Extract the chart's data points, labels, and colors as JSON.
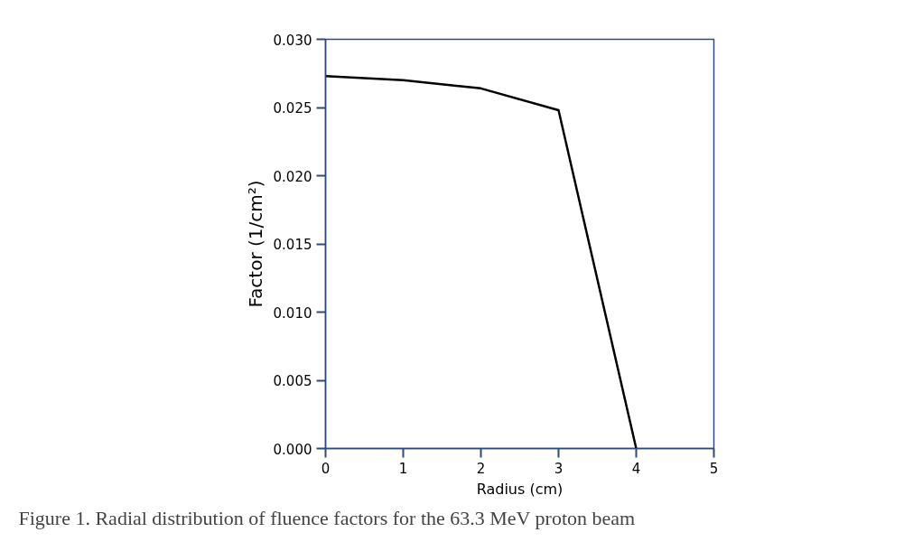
{
  "chart_data": {
    "type": "line",
    "xlabel": "Radius (cm)",
    "ylabel": "Factor (1/cm²)",
    "x": [
      0,
      1,
      2,
      3,
      4
    ],
    "series": [
      {
        "color": "#000000",
        "values": [
          0.0273,
          0.027,
          0.0264,
          0.0248,
          0.0
        ]
      }
    ],
    "xlim": [
      0,
      5
    ],
    "xticks": [
      0,
      1,
      2,
      3,
      4,
      5
    ],
    "ylim": [
      0,
      0.03
    ],
    "yticks": [
      {
        "value": 0,
        "label": "0.000"
      },
      {
        "value": 0.005,
        "label": "0.005"
      },
      {
        "value": 0.01,
        "label": "0.010"
      },
      {
        "value": 0.015,
        "label": "0.015"
      },
      {
        "value": 0.02,
        "label": "0.020"
      },
      {
        "value": 0.025,
        "label": "0.025"
      },
      {
        "value": 0.03,
        "label": "0.030"
      }
    ],
    "grid": false,
    "marker": "none",
    "line_style": "solid",
    "annotations": [
      "Figure 1. Radial distribution of fluence factors for the 63.3 MeV proton beam"
    ]
  }
}
